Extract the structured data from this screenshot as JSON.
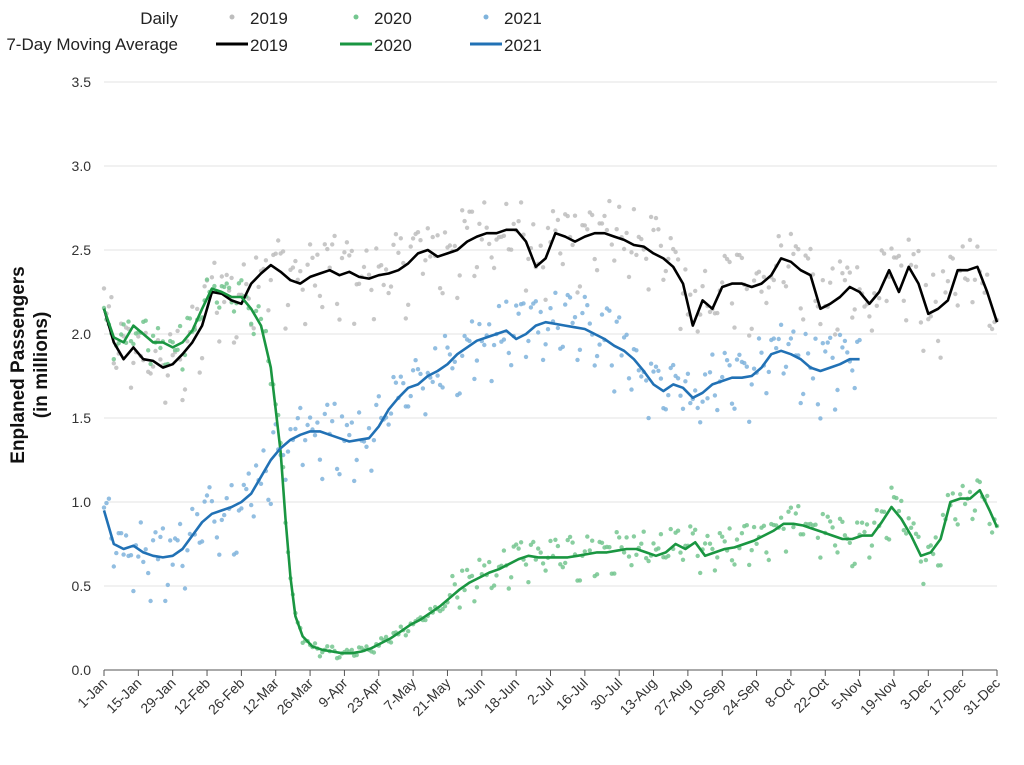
{
  "chart_data": {
    "type": "line",
    "title": "",
    "xlabel": "",
    "ylabel": "Enplaned Passengers",
    "ylabel_sub": "(in millions)",
    "ylim": [
      0,
      3.5
    ],
    "yticks": [
      "0.0",
      "0.5",
      "1.0",
      "1.5",
      "2.0",
      "2.5",
      "3.0",
      "3.5"
    ],
    "x_tick_labels": [
      "1-Jan",
      "15-Jan",
      "29-Jan",
      "12-Feb",
      "26-Feb",
      "12-Mar",
      "26-Mar",
      "9-Apr",
      "23-Apr",
      "7-May",
      "21-May",
      "4-Jun",
      "18-Jun",
      "2-Jul",
      "16-Jul",
      "30-Jul",
      "13-Aug",
      "27-Aug",
      "10-Sep",
      "24-Sep",
      "8-Oct",
      "22-Oct",
      "5-Nov",
      "19-Nov",
      "3-Dec",
      "17-Dec",
      "31-Dec"
    ],
    "grid": "horizontal",
    "legend": {
      "placement": "top",
      "row1_label": "Daily",
      "row2_label": "7-Day Moving Average",
      "entries": [
        "2019",
        "2020",
        "2021"
      ]
    },
    "series": [
      {
        "name": "2019",
        "color": "#000000",
        "daily_color": "#bdbdbd",
        "moving_average": [
          [
            1,
            2.15
          ],
          [
            5,
            1.95
          ],
          [
            9,
            1.85
          ],
          [
            13,
            1.92
          ],
          [
            17,
            1.85
          ],
          [
            21,
            1.84
          ],
          [
            25,
            1.8
          ],
          [
            29,
            1.82
          ],
          [
            33,
            1.88
          ],
          [
            37,
            1.95
          ],
          [
            41,
            2.05
          ],
          [
            45,
            2.25
          ],
          [
            49,
            2.24
          ],
          [
            53,
            2.2
          ],
          [
            57,
            2.18
          ],
          [
            61,
            2.3
          ],
          [
            65,
            2.36
          ],
          [
            69,
            2.41
          ],
          [
            73,
            2.37
          ],
          [
            77,
            2.32
          ],
          [
            81,
            2.3
          ],
          [
            85,
            2.34
          ],
          [
            89,
            2.36
          ],
          [
            93,
            2.38
          ],
          [
            97,
            2.35
          ],
          [
            101,
            2.37
          ],
          [
            105,
            2.34
          ],
          [
            109,
            2.33
          ],
          [
            113,
            2.35
          ],
          [
            117,
            2.36
          ],
          [
            121,
            2.38
          ],
          [
            125,
            2.42
          ],
          [
            129,
            2.48
          ],
          [
            133,
            2.5
          ],
          [
            137,
            2.46
          ],
          [
            141,
            2.48
          ],
          [
            145,
            2.5
          ],
          [
            149,
            2.55
          ],
          [
            153,
            2.58
          ],
          [
            157,
            2.6
          ],
          [
            161,
            2.6
          ],
          [
            165,
            2.62
          ],
          [
            169,
            2.62
          ],
          [
            173,
            2.55
          ],
          [
            177,
            2.4
          ],
          [
            181,
            2.45
          ],
          [
            185,
            2.6
          ],
          [
            189,
            2.58
          ],
          [
            193,
            2.55
          ],
          [
            197,
            2.58
          ],
          [
            201,
            2.6
          ],
          [
            205,
            2.6
          ],
          [
            209,
            2.58
          ],
          [
            213,
            2.56
          ],
          [
            217,
            2.53
          ],
          [
            221,
            2.52
          ],
          [
            225,
            2.48
          ],
          [
            229,
            2.45
          ],
          [
            233,
            2.4
          ],
          [
            237,
            2.3
          ],
          [
            241,
            2.05
          ],
          [
            245,
            2.2
          ],
          [
            249,
            2.15
          ],
          [
            253,
            2.28
          ],
          [
            257,
            2.3
          ],
          [
            261,
            2.3
          ],
          [
            265,
            2.28
          ],
          [
            269,
            2.3
          ],
          [
            273,
            2.35
          ],
          [
            277,
            2.45
          ],
          [
            281,
            2.43
          ],
          [
            285,
            2.38
          ],
          [
            289,
            2.35
          ],
          [
            293,
            2.15
          ],
          [
            297,
            2.18
          ],
          [
            301,
            2.22
          ],
          [
            305,
            2.28
          ],
          [
            309,
            2.25
          ],
          [
            313,
            2.18
          ],
          [
            317,
            2.25
          ],
          [
            321,
            2.38
          ],
          [
            325,
            2.25
          ],
          [
            329,
            2.4
          ],
          [
            333,
            2.3
          ],
          [
            337,
            2.12
          ],
          [
            341,
            2.15
          ],
          [
            345,
            2.2
          ],
          [
            349,
            2.38
          ],
          [
            353,
            2.38
          ],
          [
            357,
            2.4
          ],
          [
            361,
            2.25
          ],
          [
            365,
            2.07
          ]
        ]
      },
      {
        "name": "2020",
        "color": "#1a9641",
        "daily_color": "#74c68f",
        "moving_average": [
          [
            1,
            2.15
          ],
          [
            5,
            1.98
          ],
          [
            9,
            1.95
          ],
          [
            13,
            2.05
          ],
          [
            17,
            2.0
          ],
          [
            21,
            1.95
          ],
          [
            25,
            1.95
          ],
          [
            29,
            1.92
          ],
          [
            33,
            1.95
          ],
          [
            37,
            2.02
          ],
          [
            41,
            2.15
          ],
          [
            45,
            2.27
          ],
          [
            49,
            2.25
          ],
          [
            53,
            2.22
          ],
          [
            57,
            2.22
          ],
          [
            61,
            2.15
          ],
          [
            65,
            2.05
          ],
          [
            69,
            1.8
          ],
          [
            73,
            1.3
          ],
          [
            75,
            0.9
          ],
          [
            77,
            0.55
          ],
          [
            79,
            0.32
          ],
          [
            82,
            0.2
          ],
          [
            86,
            0.14
          ],
          [
            90,
            0.12
          ],
          [
            94,
            0.11
          ],
          [
            98,
            0.1
          ],
          [
            102,
            0.1
          ],
          [
            106,
            0.11
          ],
          [
            110,
            0.13
          ],
          [
            114,
            0.16
          ],
          [
            118,
            0.19
          ],
          [
            122,
            0.23
          ],
          [
            126,
            0.27
          ],
          [
            130,
            0.3
          ],
          [
            134,
            0.34
          ],
          [
            138,
            0.38
          ],
          [
            142,
            0.43
          ],
          [
            146,
            0.48
          ],
          [
            150,
            0.52
          ],
          [
            154,
            0.55
          ],
          [
            158,
            0.58
          ],
          [
            162,
            0.6
          ],
          [
            166,
            0.63
          ],
          [
            170,
            0.66
          ],
          [
            174,
            0.68
          ],
          [
            178,
            0.67
          ],
          [
            182,
            0.67
          ],
          [
            186,
            0.67
          ],
          [
            190,
            0.67
          ],
          [
            194,
            0.68
          ],
          [
            198,
            0.69
          ],
          [
            202,
            0.7
          ],
          [
            206,
            0.7
          ],
          [
            210,
            0.71
          ],
          [
            214,
            0.72
          ],
          [
            218,
            0.72
          ],
          [
            222,
            0.7
          ],
          [
            226,
            0.68
          ],
          [
            230,
            0.7
          ],
          [
            234,
            0.75
          ],
          [
            238,
            0.72
          ],
          [
            242,
            0.76
          ],
          [
            246,
            0.68
          ],
          [
            250,
            0.7
          ],
          [
            254,
            0.72
          ],
          [
            258,
            0.73
          ],
          [
            262,
            0.75
          ],
          [
            266,
            0.77
          ],
          [
            270,
            0.8
          ],
          [
            274,
            0.83
          ],
          [
            278,
            0.87
          ],
          [
            282,
            0.87
          ],
          [
            286,
            0.86
          ],
          [
            290,
            0.84
          ],
          [
            294,
            0.82
          ],
          [
            298,
            0.8
          ],
          [
            302,
            0.78
          ],
          [
            306,
            0.78
          ],
          [
            310,
            0.8
          ],
          [
            314,
            0.8
          ],
          [
            318,
            0.88
          ],
          [
            322,
            0.97
          ],
          [
            326,
            0.9
          ],
          [
            330,
            0.8
          ],
          [
            334,
            0.68
          ],
          [
            338,
            0.7
          ],
          [
            342,
            0.78
          ],
          [
            346,
            1.0
          ],
          [
            350,
            1.02
          ],
          [
            354,
            1.02
          ],
          [
            358,
            1.07
          ],
          [
            362,
            0.95
          ],
          [
            365,
            0.85
          ]
        ]
      },
      {
        "name": "2021",
        "color": "#2171b5",
        "daily_color": "#7fb3dc",
        "moving_average": [
          [
            1,
            0.95
          ],
          [
            5,
            0.75
          ],
          [
            9,
            0.72
          ],
          [
            13,
            0.74
          ],
          [
            17,
            0.7
          ],
          [
            21,
            0.68
          ],
          [
            25,
            0.67
          ],
          [
            29,
            0.68
          ],
          [
            33,
            0.72
          ],
          [
            37,
            0.8
          ],
          [
            41,
            0.88
          ],
          [
            45,
            0.93
          ],
          [
            49,
            0.95
          ],
          [
            53,
            0.97
          ],
          [
            57,
            1.0
          ],
          [
            61,
            1.05
          ],
          [
            65,
            1.15
          ],
          [
            69,
            1.25
          ],
          [
            73,
            1.32
          ],
          [
            77,
            1.37
          ],
          [
            81,
            1.4
          ],
          [
            85,
            1.42
          ],
          [
            89,
            1.42
          ],
          [
            93,
            1.4
          ],
          [
            97,
            1.38
          ],
          [
            101,
            1.36
          ],
          [
            105,
            1.37
          ],
          [
            109,
            1.38
          ],
          [
            113,
            1.45
          ],
          [
            117,
            1.55
          ],
          [
            121,
            1.62
          ],
          [
            125,
            1.68
          ],
          [
            129,
            1.7
          ],
          [
            133,
            1.75
          ],
          [
            137,
            1.78
          ],
          [
            141,
            1.82
          ],
          [
            145,
            1.88
          ],
          [
            149,
            1.92
          ],
          [
            153,
            1.96
          ],
          [
            157,
            1.98
          ],
          [
            161,
            2.0
          ],
          [
            165,
            2.02
          ],
          [
            169,
            1.97
          ],
          [
            173,
            2.0
          ],
          [
            177,
            2.05
          ],
          [
            181,
            2.07
          ],
          [
            185,
            2.06
          ],
          [
            189,
            2.05
          ],
          [
            193,
            2.04
          ],
          [
            197,
            2.03
          ],
          [
            201,
            2.0
          ],
          [
            205,
            1.97
          ],
          [
            209,
            1.93
          ],
          [
            213,
            1.9
          ],
          [
            217,
            1.85
          ],
          [
            221,
            1.78
          ],
          [
            225,
            1.7
          ],
          [
            229,
            1.66
          ],
          [
            233,
            1.7
          ],
          [
            237,
            1.68
          ],
          [
            241,
            1.62
          ],
          [
            245,
            1.65
          ],
          [
            249,
            1.7
          ],
          [
            253,
            1.72
          ],
          [
            257,
            1.74
          ],
          [
            261,
            1.74
          ],
          [
            265,
            1.75
          ],
          [
            269,
            1.8
          ],
          [
            273,
            1.88
          ],
          [
            277,
            1.9
          ],
          [
            281,
            1.88
          ],
          [
            285,
            1.85
          ],
          [
            289,
            1.8
          ],
          [
            293,
            1.78
          ],
          [
            297,
            1.8
          ],
          [
            301,
            1.82
          ],
          [
            305,
            1.85
          ],
          [
            309,
            1.85
          ]
        ]
      }
    ]
  }
}
